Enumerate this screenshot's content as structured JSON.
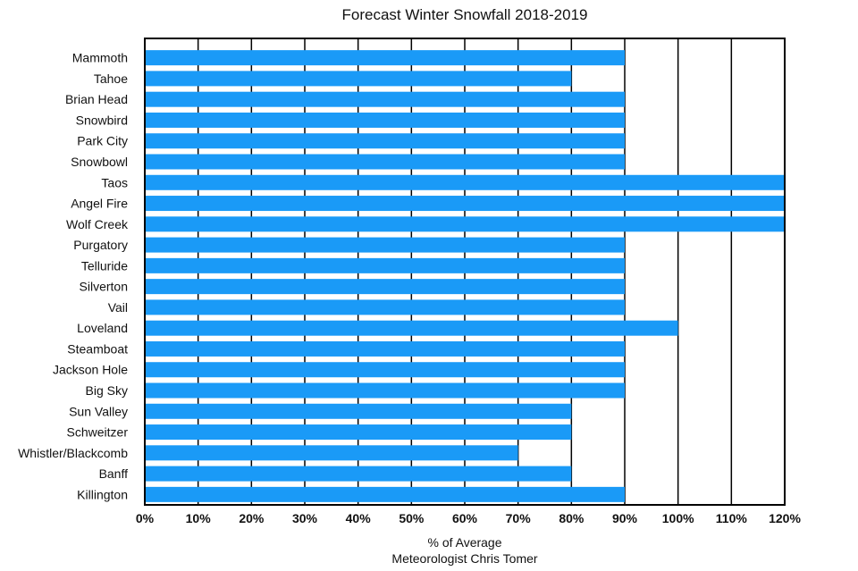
{
  "chart_data": {
    "type": "bar",
    "orientation": "horizontal",
    "title": "Forecast Winter Snowfall 2018-2019",
    "xlabel": "% of Average",
    "subtitle": "Meteorologist Chris Tomer",
    "ylabel": "",
    "xlim": [
      0,
      120
    ],
    "x_ticks": [
      0,
      10,
      20,
      30,
      40,
      50,
      60,
      70,
      80,
      90,
      100,
      110,
      120
    ],
    "tick_labels": [
      "0%",
      "10%",
      "20%",
      "30%",
      "40%",
      "50%",
      "60%",
      "70%",
      "80%",
      "90%",
      "100%",
      "110%",
      "120%"
    ],
    "grid": "vertical",
    "bar_color": "#1a9af7",
    "categories": [
      "Mammoth",
      "Tahoe",
      "Brian Head",
      "Snowbird",
      "Park City",
      "Snowbowl",
      "Taos",
      "Angel Fire",
      "Wolf Creek",
      "Purgatory",
      "Telluride",
      "Silverton",
      "Vail",
      "Loveland",
      "Steamboat",
      "Jackson Hole",
      "Big Sky",
      "Sun Valley",
      "Schweitzer",
      "Whistler/Blackcomb",
      "Banff",
      "Killington"
    ],
    "values": [
      90,
      80,
      90,
      90,
      90,
      90,
      120,
      120,
      120,
      90,
      90,
      90,
      90,
      100,
      90,
      90,
      90,
      80,
      80,
      70,
      80,
      90
    ]
  }
}
